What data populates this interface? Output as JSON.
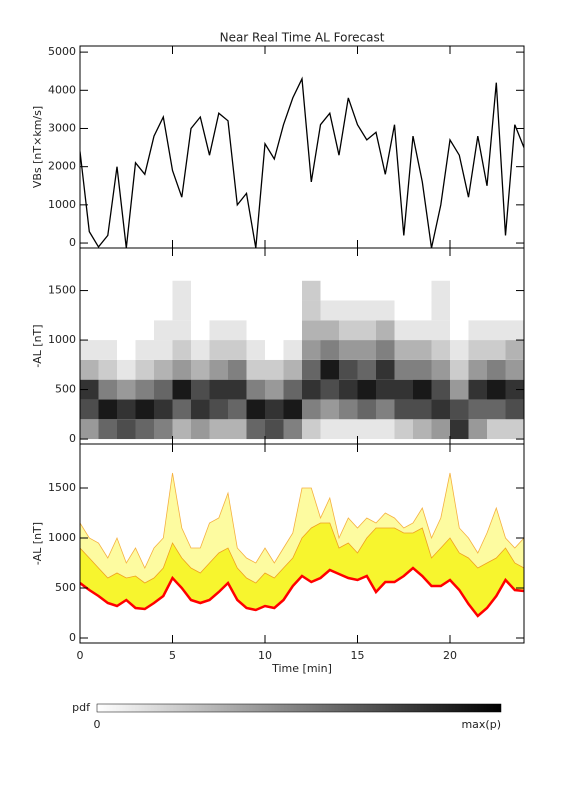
{
  "chart_data": [
    {
      "type": "line",
      "title": "Near Real Time AL Forecast",
      "ylabel": "VBs [nT×km/s]",
      "color": "#000000",
      "xlim": [
        0,
        24
      ],
      "ylim": [
        -130,
        5160
      ],
      "yticks": [
        0,
        1000,
        2000,
        3000,
        4000,
        5000
      ],
      "x": [
        0,
        0.5,
        1,
        1.5,
        2,
        2.5,
        3,
        3.5,
        4,
        4.5,
        5,
        5.5,
        6,
        6.5,
        7,
        7.5,
        8,
        8.5,
        9,
        9.5,
        10,
        10.5,
        11,
        11.5,
        12,
        12.5,
        13,
        13.5,
        14,
        14.5,
        15,
        15.5,
        16,
        16.5,
        17,
        17.5,
        18,
        18.5,
        19,
        19.5,
        20,
        20.5,
        21,
        21.5,
        22,
        22.5,
        23,
        23.5,
        24
      ],
      "values": [
        2400,
        300,
        -100,
        200,
        2000,
        -130,
        2100,
        1800,
        2800,
        3300,
        1900,
        1200,
        3000,
        3300,
        2300,
        3400,
        3200,
        1000,
        1300,
        -130,
        2600,
        2200,
        3100,
        3800,
        4300,
        1600,
        3100,
        3400,
        2300,
        3800,
        3100,
        2700,
        2900,
        1800,
        3100,
        200,
        2800,
        1600,
        -130,
        1000,
        2700,
        2300,
        1200,
        2800,
        1500,
        4200,
        200,
        3100,
        2500
      ]
    },
    {
      "type": "heatmap",
      "ylabel": "-AL [nT]",
      "xlim": [
        0,
        24
      ],
      "ylim": [
        -50,
        1930
      ],
      "yticks": [
        0,
        500,
        1000,
        1500
      ],
      "x_edges": [
        0,
        1,
        2,
        3,
        4,
        5,
        6,
        7,
        8,
        9,
        10,
        11,
        12,
        13,
        14,
        15,
        16,
        17,
        18,
        19,
        20,
        21,
        22,
        23,
        24
      ],
      "y_edges": [
        0,
        200,
        400,
        600,
        800,
        1000,
        1200,
        1400,
        1600,
        1800
      ],
      "values": [
        [
          0.4,
          0.7,
          0.8,
          0.3,
          0.1,
          0,
          0,
          0,
          0
        ],
        [
          0.6,
          0.9,
          0.5,
          0.2,
          0.1,
          0,
          0,
          0,
          0
        ],
        [
          0.7,
          0.8,
          0.4,
          0.1,
          0,
          0,
          0,
          0,
          0
        ],
        [
          0.6,
          0.9,
          0.5,
          0.2,
          0.1,
          0,
          0,
          0,
          0
        ],
        [
          0.5,
          0.8,
          0.6,
          0.3,
          0.1,
          0.1,
          0,
          0,
          0
        ],
        [
          0.3,
          0.6,
          0.9,
          0.4,
          0.2,
          0.1,
          0.1,
          0.1,
          0
        ],
        [
          0.4,
          0.8,
          0.7,
          0.3,
          0.1,
          0,
          0,
          0,
          0
        ],
        [
          0.3,
          0.7,
          0.8,
          0.4,
          0.2,
          0.1,
          0,
          0,
          0
        ],
        [
          0.3,
          0.6,
          0.8,
          0.5,
          0.2,
          0.1,
          0,
          0,
          0
        ],
        [
          0.6,
          0.9,
          0.5,
          0.2,
          0.1,
          0,
          0,
          0,
          0
        ],
        [
          0.7,
          0.8,
          0.4,
          0.2,
          0,
          0,
          0,
          0,
          0
        ],
        [
          0.5,
          0.9,
          0.6,
          0.3,
          0.1,
          0,
          0,
          0,
          0
        ],
        [
          0.2,
          0.5,
          0.8,
          0.6,
          0.4,
          0.3,
          0.2,
          0.2,
          0
        ],
        [
          0.1,
          0.4,
          0.7,
          0.9,
          0.5,
          0.3,
          0.1,
          0,
          0
        ],
        [
          0.1,
          0.5,
          0.8,
          0.7,
          0.4,
          0.2,
          0.1,
          0,
          0
        ],
        [
          0.1,
          0.6,
          0.9,
          0.6,
          0.4,
          0.2,
          0.1,
          0,
          0
        ],
        [
          0.1,
          0.5,
          0.8,
          0.8,
          0.5,
          0.3,
          0.1,
          0,
          0
        ],
        [
          0.2,
          0.7,
          0.8,
          0.5,
          0.3,
          0.1,
          0,
          0,
          0
        ],
        [
          0.3,
          0.7,
          0.9,
          0.5,
          0.3,
          0.1,
          0,
          0,
          0
        ],
        [
          0.4,
          0.8,
          0.7,
          0.4,
          0.2,
          0.1,
          0.1,
          0.1,
          0
        ],
        [
          0.8,
          0.7,
          0.4,
          0.2,
          0.1,
          0,
          0,
          0,
          0
        ],
        [
          0.4,
          0.6,
          0.8,
          0.4,
          0.2,
          0.1,
          0,
          0,
          0
        ],
        [
          0.2,
          0.6,
          0.9,
          0.5,
          0.2,
          0.1,
          0,
          0,
          0
        ],
        [
          0.2,
          0.7,
          0.8,
          0.4,
          0.3,
          0.1,
          0,
          0,
          0
        ]
      ]
    },
    {
      "type": "area",
      "ylabel": "-AL [nT]",
      "xlabel": "Time [min]",
      "xlim": [
        0,
        24
      ],
      "ylim": [
        -50,
        1940
      ],
      "yticks": [
        0,
        500,
        1000,
        1500
      ],
      "xticks": [
        0,
        5,
        10,
        15,
        20
      ],
      "x": [
        0,
        0.5,
        1,
        1.5,
        2,
        2.5,
        3,
        3.5,
        4,
        4.5,
        5,
        5.5,
        6,
        6.5,
        7,
        7.5,
        8,
        8.5,
        9,
        9.5,
        10,
        10.5,
        11,
        11.5,
        12,
        12.5,
        13,
        13.5,
        14,
        14.5,
        15,
        15.5,
        16,
        16.5,
        17,
        17.5,
        18,
        18.5,
        19,
        19.5,
        20,
        20.5,
        21,
        21.5,
        22,
        22.5,
        23,
        23.5,
        24
      ],
      "series": [
        {
          "color": "#ff0000",
          "values": [
            550,
            480,
            420,
            350,
            320,
            380,
            300,
            290,
            350,
            420,
            600,
            500,
            380,
            350,
            380,
            460,
            550,
            380,
            300,
            280,
            320,
            300,
            380,
            520,
            620,
            560,
            600,
            680,
            640,
            600,
            580,
            620,
            460,
            560,
            560,
            620,
            700,
            620,
            520,
            520,
            580,
            480,
            340,
            220,
            300,
            420,
            580,
            480,
            470
          ]
        },
        {
          "color": "#f0a020",
          "fill": "#f7f52e",
          "values": [
            900,
            800,
            700,
            600,
            650,
            600,
            620,
            550,
            600,
            700,
            950,
            800,
            700,
            650,
            750,
            850,
            900,
            700,
            600,
            550,
            650,
            600,
            700,
            800,
            1000,
            1100,
            1150,
            1150,
            900,
            950,
            850,
            1000,
            1100,
            1100,
            1100,
            1050,
            1050,
            1100,
            800,
            900,
            1000,
            850,
            800,
            700,
            750,
            800,
            900,
            750,
            700
          ]
        },
        {
          "color": "#f5b040",
          "fill": "#fdfba0",
          "values": [
            1150,
            1000,
            950,
            800,
            1000,
            750,
            900,
            700,
            900,
            1000,
            1650,
            1100,
            900,
            900,
            1150,
            1200,
            1450,
            900,
            800,
            750,
            900,
            750,
            900,
            1050,
            1500,
            1500,
            1200,
            1400,
            1000,
            1200,
            1100,
            1200,
            1150,
            1250,
            1200,
            1100,
            1150,
            1300,
            1000,
            1200,
            1650,
            1100,
            1000,
            850,
            1050,
            1300,
            1000,
            900,
            1000
          ]
        }
      ]
    },
    {
      "type": "colorbar",
      "label": "pdf",
      "labels": [
        "0",
        "max(p)"
      ]
    }
  ]
}
